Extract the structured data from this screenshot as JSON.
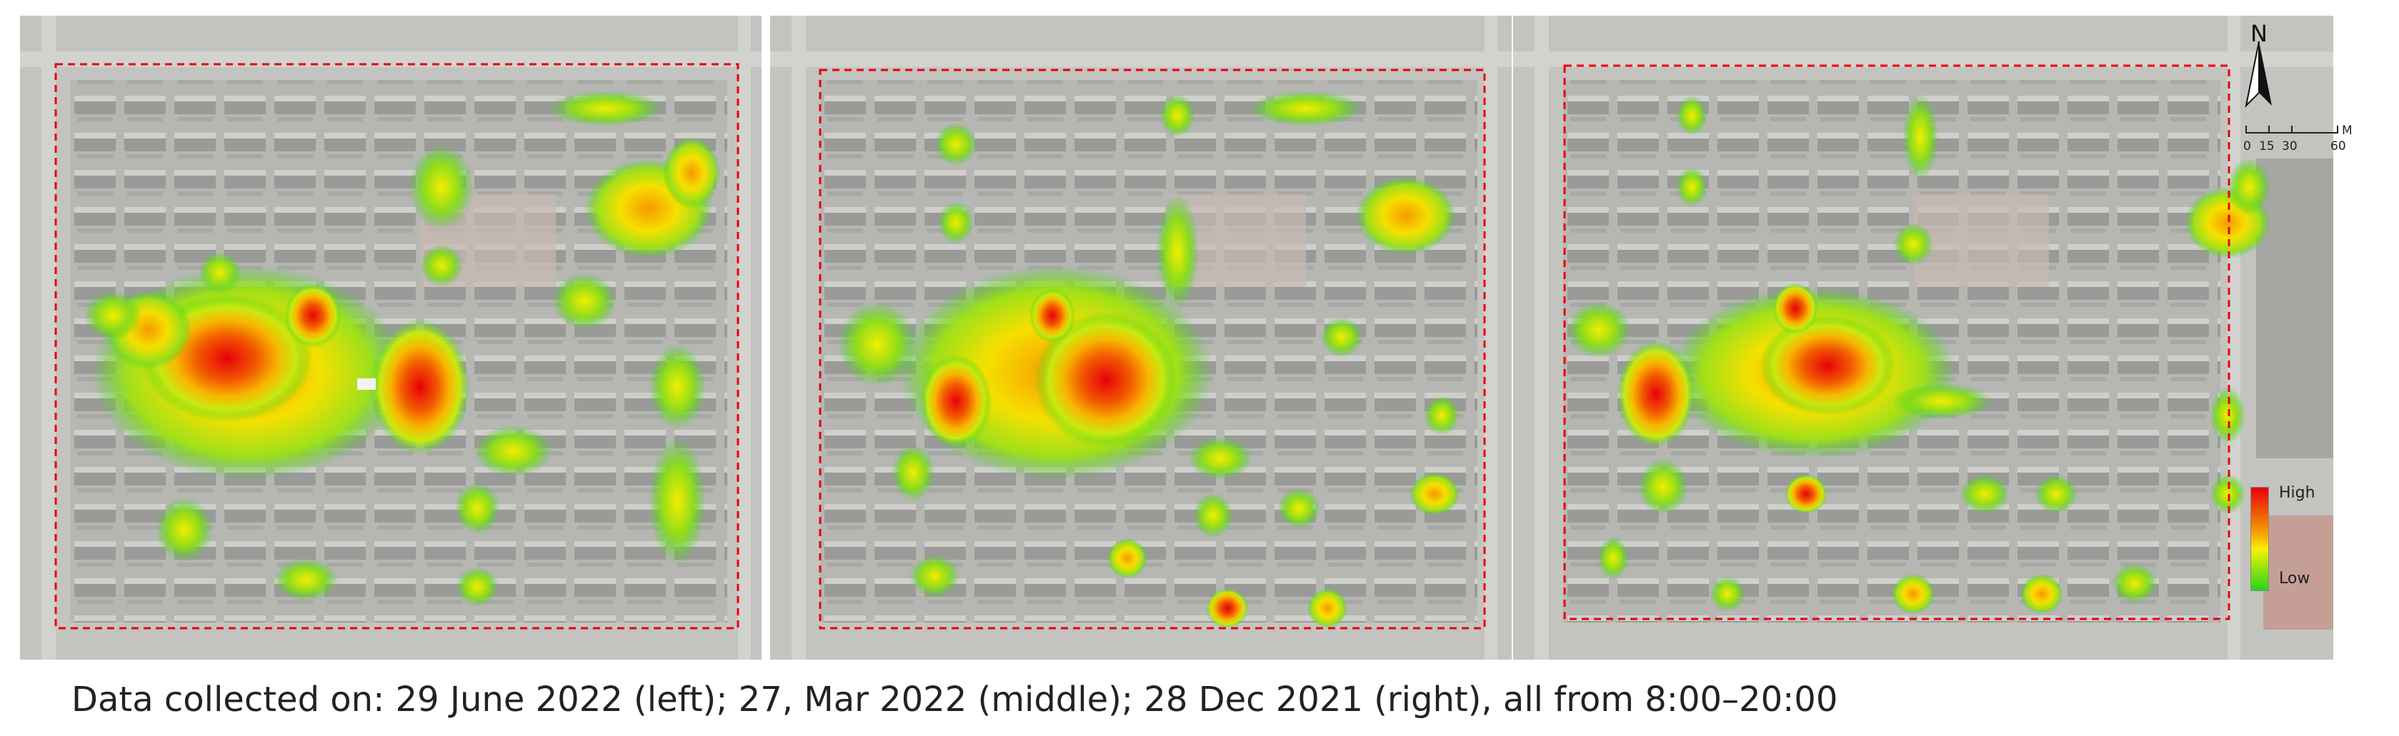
{
  "caption": "Data collected on: 29 June 2022 (left); 27, Mar 2022 (middle); 28 Dec 2021 (right), all from 8:00–20:00",
  "colors": {
    "boundary": "#e8000b",
    "heat_high": "#e8000b",
    "heat_mid": "#f7a400",
    "heat_lowmid": "#f4f200",
    "heat_low": "#28d21c",
    "basemap": "#b9bab6"
  },
  "north_arrow": {
    "letter": "N",
    "icon": "north-arrow-icon"
  },
  "scale_bar": {
    "ticks": [
      "0",
      "15",
      "30",
      "60"
    ],
    "unit": "M"
  },
  "legend": {
    "high_label": "High",
    "low_label": "Low"
  },
  "panels": [
    {
      "id": "left",
      "date": "29 June 2022"
    },
    {
      "id": "middle",
      "date": "27, Mar 2022"
    },
    {
      "id": "right",
      "date": "28 Dec 2021"
    }
  ]
}
